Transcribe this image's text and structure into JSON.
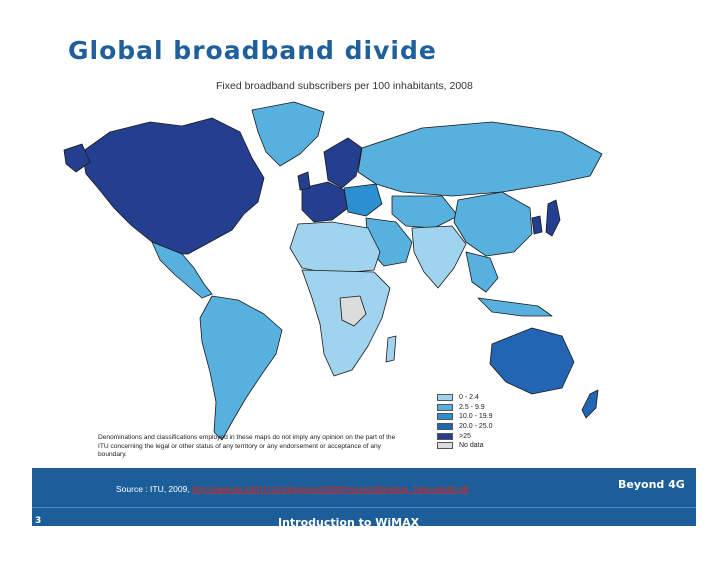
{
  "slide": {
    "title": "Global broadband divide",
    "page_number": "3",
    "footer_title": "Introduction to WiMAX",
    "brand": "Beyond 4G"
  },
  "map": {
    "title": "Fixed broadband subscribers per 100 inhabitants, 2008",
    "disclaimer": "Denominations and classifications employed in these maps do not imply any opinion on the part of the ITU concerning the legal or other status of any territory or any endorsement or acceptance of any boundary.",
    "legend": [
      {
        "label": "0 - 2.4",
        "color": "#9fd3ee"
      },
      {
        "label": "2.5 - 9.9",
        "color": "#58b0df"
      },
      {
        "label": "10.0 - 19.9",
        "color": "#2b8fd0"
      },
      {
        "label": "20.0 - 25.0",
        "color": "#2266b3"
      },
      {
        "label": ">25",
        "color": "#243f8f"
      },
      {
        "label": "No data",
        "color": "#dcdcdc"
      }
    ],
    "regions": [
      {
        "name": "north-america",
        "category": ">25"
      },
      {
        "name": "greenland",
        "category": "2.5 - 9.9"
      },
      {
        "name": "central-america",
        "category": "2.5 - 9.9"
      },
      {
        "name": "south-america",
        "category": "2.5 - 9.9"
      },
      {
        "name": "western-europe",
        "category": ">25"
      },
      {
        "name": "scandinavia",
        "category": ">25"
      },
      {
        "name": "eastern-europe",
        "category": "10.0 - 19.9"
      },
      {
        "name": "russia",
        "category": "2.5 - 9.9"
      },
      {
        "name": "middle-east",
        "category": "2.5 - 9.9"
      },
      {
        "name": "north-africa",
        "category": "0 - 2.4"
      },
      {
        "name": "sub-saharan-africa",
        "category": "0 - 2.4"
      },
      {
        "name": "dr-congo",
        "category": "No data"
      },
      {
        "name": "central-asia",
        "category": "2.5 - 9.9"
      },
      {
        "name": "south-asia",
        "category": "0 - 2.4"
      },
      {
        "name": "china",
        "category": "2.5 - 9.9"
      },
      {
        "name": "korea-japan",
        "category": ">25"
      },
      {
        "name": "southeast-asia",
        "category": "2.5 - 9.9"
      },
      {
        "name": "australia",
        "category": "20.0 - 25.0"
      },
      {
        "name": "new-zealand",
        "category": "20.0 - 25.0"
      }
    ]
  },
  "source": {
    "prefix": "Source : ITU, 2009,",
    "link": "http://www.itu.int/ITU-D/ict/papers/2009/Press%20briefing_Telecom09.pdf"
  }
}
